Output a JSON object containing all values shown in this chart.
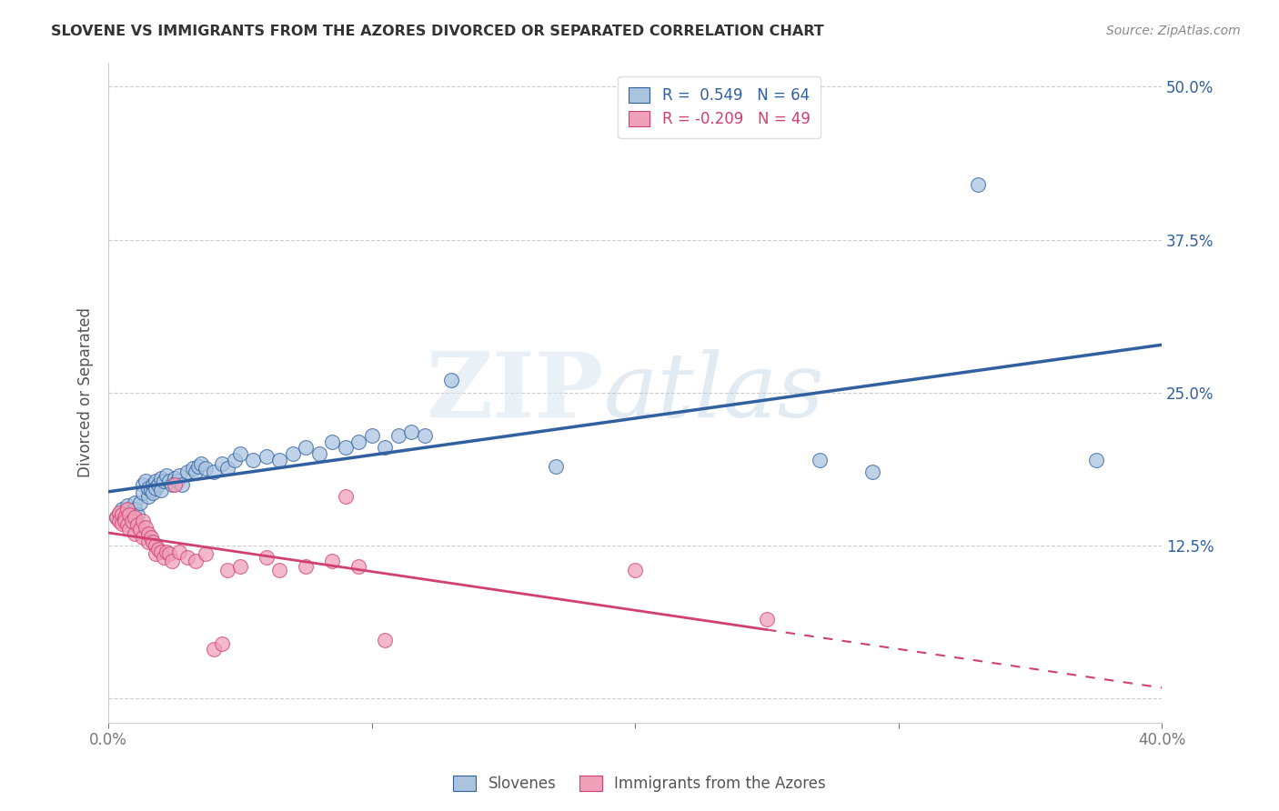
{
  "title": "SLOVENE VS IMMIGRANTS FROM THE AZORES DIVORCED OR SEPARATED CORRELATION CHART",
  "source": "Source: ZipAtlas.com",
  "ylabel": "Divorced or Separated",
  "xlim": [
    0.0,
    0.4
  ],
  "ylim": [
    -0.02,
    0.52
  ],
  "x_ticks": [
    0.0,
    0.1,
    0.2,
    0.3,
    0.4
  ],
  "y_ticks": [
    0.0,
    0.125,
    0.25,
    0.375,
    0.5
  ],
  "grid_color": "#c8c8c8",
  "background_color": "#ffffff",
  "watermark_zip": "ZIP",
  "watermark_atlas": "atlas",
  "legend_labels": [
    "Slovenes",
    "Immigrants from the Azores"
  ],
  "blue_R": 0.549,
  "blue_N": 64,
  "pink_R": -0.209,
  "pink_N": 49,
  "blue_color": "#aac4e0",
  "pink_color": "#f0a0b8",
  "blue_line_color": "#3060a0",
  "pink_line_color": "#d04070",
  "blue_scatter": [
    [
      0.003,
      0.148
    ],
    [
      0.004,
      0.15
    ],
    [
      0.005,
      0.155
    ],
    [
      0.006,
      0.15
    ],
    [
      0.007,
      0.152
    ],
    [
      0.007,
      0.158
    ],
    [
      0.008,
      0.148
    ],
    [
      0.009,
      0.152
    ],
    [
      0.01,
      0.16
    ],
    [
      0.01,
      0.155
    ],
    [
      0.011,
      0.15
    ],
    [
      0.012,
      0.16
    ],
    [
      0.013,
      0.175
    ],
    [
      0.013,
      0.168
    ],
    [
      0.014,
      0.178
    ],
    [
      0.015,
      0.165
    ],
    [
      0.015,
      0.172
    ],
    [
      0.016,
      0.17
    ],
    [
      0.017,
      0.175
    ],
    [
      0.017,
      0.168
    ],
    [
      0.018,
      0.178
    ],
    [
      0.018,
      0.172
    ],
    [
      0.019,
      0.175
    ],
    [
      0.02,
      0.18
    ],
    [
      0.02,
      0.17
    ],
    [
      0.021,
      0.178
    ],
    [
      0.022,
      0.182
    ],
    [
      0.023,
      0.178
    ],
    [
      0.024,
      0.175
    ],
    [
      0.025,
      0.18
    ],
    [
      0.026,
      0.178
    ],
    [
      0.027,
      0.182
    ],
    [
      0.028,
      0.175
    ],
    [
      0.03,
      0.185
    ],
    [
      0.032,
      0.188
    ],
    [
      0.033,
      0.185
    ],
    [
      0.034,
      0.19
    ],
    [
      0.035,
      0.192
    ],
    [
      0.037,
      0.188
    ],
    [
      0.04,
      0.185
    ],
    [
      0.043,
      0.192
    ],
    [
      0.045,
      0.188
    ],
    [
      0.048,
      0.195
    ],
    [
      0.05,
      0.2
    ],
    [
      0.055,
      0.195
    ],
    [
      0.06,
      0.198
    ],
    [
      0.065,
      0.195
    ],
    [
      0.07,
      0.2
    ],
    [
      0.075,
      0.205
    ],
    [
      0.08,
      0.2
    ],
    [
      0.085,
      0.21
    ],
    [
      0.09,
      0.205
    ],
    [
      0.095,
      0.21
    ],
    [
      0.1,
      0.215
    ],
    [
      0.105,
      0.205
    ],
    [
      0.11,
      0.215
    ],
    [
      0.115,
      0.218
    ],
    [
      0.12,
      0.215
    ],
    [
      0.13,
      0.26
    ],
    [
      0.17,
      0.19
    ],
    [
      0.27,
      0.195
    ],
    [
      0.29,
      0.185
    ],
    [
      0.33,
      0.42
    ],
    [
      0.375,
      0.195
    ]
  ],
  "pink_scatter": [
    [
      0.003,
      0.148
    ],
    [
      0.004,
      0.152
    ],
    [
      0.004,
      0.145
    ],
    [
      0.005,
      0.15
    ],
    [
      0.005,
      0.143
    ],
    [
      0.006,
      0.148
    ],
    [
      0.006,
      0.145
    ],
    [
      0.007,
      0.155
    ],
    [
      0.007,
      0.142
    ],
    [
      0.008,
      0.15
    ],
    [
      0.008,
      0.138
    ],
    [
      0.009,
      0.145
    ],
    [
      0.01,
      0.148
    ],
    [
      0.01,
      0.135
    ],
    [
      0.011,
      0.142
    ],
    [
      0.012,
      0.138
    ],
    [
      0.013,
      0.145
    ],
    [
      0.013,
      0.132
    ],
    [
      0.014,
      0.14
    ],
    [
      0.015,
      0.135
    ],
    [
      0.015,
      0.128
    ],
    [
      0.016,
      0.132
    ],
    [
      0.017,
      0.128
    ],
    [
      0.018,
      0.125
    ],
    [
      0.018,
      0.118
    ],
    [
      0.019,
      0.122
    ],
    [
      0.02,
      0.12
    ],
    [
      0.021,
      0.115
    ],
    [
      0.022,
      0.12
    ],
    [
      0.023,
      0.118
    ],
    [
      0.024,
      0.112
    ],
    [
      0.025,
      0.175
    ],
    [
      0.027,
      0.12
    ],
    [
      0.03,
      0.115
    ],
    [
      0.033,
      0.112
    ],
    [
      0.037,
      0.118
    ],
    [
      0.04,
      0.04
    ],
    [
      0.043,
      0.045
    ],
    [
      0.045,
      0.105
    ],
    [
      0.05,
      0.108
    ],
    [
      0.06,
      0.115
    ],
    [
      0.065,
      0.105
    ],
    [
      0.075,
      0.108
    ],
    [
      0.085,
      0.112
    ],
    [
      0.09,
      0.165
    ],
    [
      0.095,
      0.108
    ],
    [
      0.105,
      0.048
    ],
    [
      0.2,
      0.105
    ],
    [
      0.25,
      0.065
    ]
  ]
}
